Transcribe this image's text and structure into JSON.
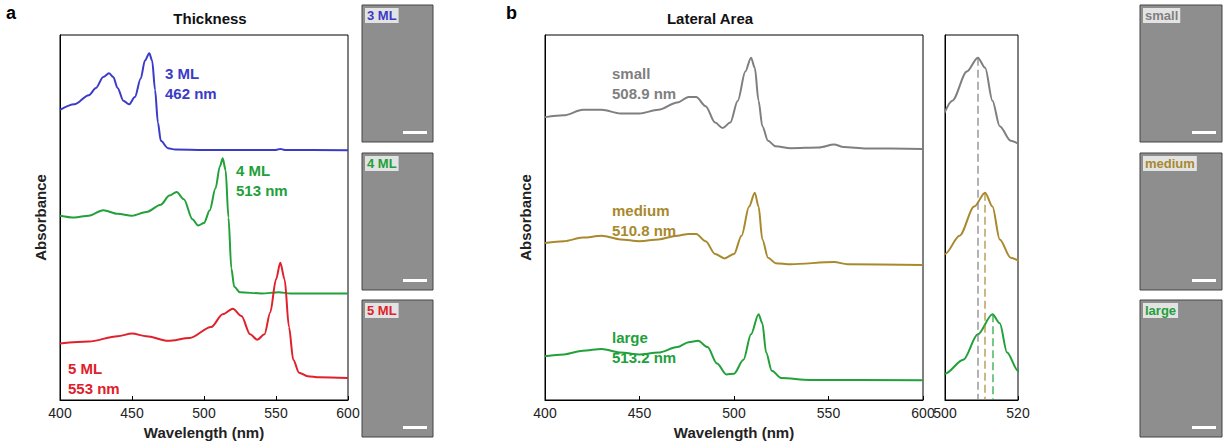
{
  "chart_data": [
    {
      "type": "line",
      "panel": "a",
      "title": "Thickness",
      "x_label": "Wavelength (nm)",
      "y_label": "Absorbance",
      "xlim": [
        400,
        600
      ],
      "xticks": [
        400,
        450,
        500,
        550,
        600
      ],
      "ylim": [
        0,
        10
      ],
      "yticks": [],
      "tick_labels": "x",
      "grid": false,
      "series": [
        {
          "name": "3 ML",
          "annotation": "462 nm",
          "color": "#3b3bc9",
          "x": [
            400,
            410,
            420,
            425,
            430,
            434,
            437,
            440,
            444,
            448,
            452,
            456,
            459,
            462,
            464,
            466,
            468,
            470,
            475,
            480,
            500,
            550,
            553,
            556,
            600
          ],
          "values": [
            7.95,
            8.1,
            8.35,
            8.55,
            8.85,
            8.95,
            8.85,
            8.55,
            8.2,
            8.1,
            8.3,
            8.8,
            9.3,
            9.5,
            9.3,
            8.5,
            7.6,
            7.1,
            6.9,
            6.86,
            6.85,
            6.85,
            6.88,
            6.85,
            6.84
          ]
        },
        {
          "name": "4 ML",
          "annotation": "513 nm",
          "color": "#22a03a",
          "x": [
            400,
            410,
            420,
            430,
            440,
            450,
            460,
            470,
            476,
            481,
            486,
            492,
            496,
            500,
            504,
            508,
            511,
            513,
            515,
            517,
            519,
            521,
            525,
            540,
            552,
            560,
            600
          ],
          "values": [
            5.05,
            5.0,
            5.05,
            5.2,
            5.1,
            5.05,
            5.15,
            5.35,
            5.6,
            5.7,
            5.5,
            4.95,
            4.78,
            4.85,
            5.2,
            5.8,
            6.4,
            6.62,
            6.3,
            5.0,
            3.6,
            3.1,
            2.95,
            2.92,
            2.95,
            2.92,
            2.92
          ]
        },
        {
          "name": "5 ML",
          "annotation": "553 nm",
          "color": "#e0202a",
          "x": [
            400,
            420,
            440,
            450,
            460,
            475,
            490,
            505,
            513,
            520,
            526,
            532,
            537,
            542,
            546,
            550,
            553,
            556,
            559,
            562,
            566,
            572,
            580,
            600
          ],
          "values": [
            1.55,
            1.6,
            1.75,
            1.82,
            1.75,
            1.62,
            1.7,
            2.0,
            2.35,
            2.5,
            2.3,
            1.8,
            1.65,
            1.8,
            2.4,
            3.3,
            3.76,
            3.3,
            2.0,
            1.1,
            0.75,
            0.65,
            0.62,
            0.6
          ]
        }
      ]
    },
    {
      "type": "line",
      "panel": "b",
      "title": "Lateral Area",
      "x_label": "Wavelength (nm)",
      "y_label": "Absorbance",
      "xlim": [
        400,
        600
      ],
      "xticks": [
        400,
        450,
        500,
        550,
        600
      ],
      "ylim": [
        0,
        10
      ],
      "yticks": [],
      "tick_labels": "x",
      "grid": false,
      "series": [
        {
          "name": "small",
          "annotation": "508.9 nm",
          "peak": 508.9,
          "color": "#7f7f7f",
          "x": [
            400,
            410,
            420,
            430,
            440,
            450,
            460,
            470,
            476,
            480,
            485,
            490,
            494,
            498,
            502,
            506,
            509,
            511,
            513,
            515,
            518,
            522,
            530,
            545,
            553,
            558,
            570,
            600
          ],
          "values": [
            7.75,
            7.8,
            7.95,
            7.95,
            7.85,
            7.85,
            7.95,
            8.15,
            8.3,
            8.3,
            8.05,
            7.6,
            7.45,
            7.6,
            8.2,
            9.0,
            9.38,
            9.1,
            8.2,
            7.5,
            7.1,
            6.95,
            6.9,
            6.92,
            7.0,
            6.93,
            6.89,
            6.88
          ]
        },
        {
          "name": "medium",
          "annotation": "510.8 nm",
          "peak": 510.8,
          "color": "#a8892e",
          "x": [
            400,
            410,
            420,
            430,
            440,
            450,
            460,
            470,
            476,
            480,
            485,
            490,
            495,
            500,
            504,
            508,
            511,
            513,
            515,
            518,
            522,
            530,
            553,
            560,
            600
          ],
          "values": [
            4.3,
            4.35,
            4.45,
            4.5,
            4.4,
            4.35,
            4.4,
            4.5,
            4.55,
            4.55,
            4.35,
            4.0,
            3.88,
            4.0,
            4.5,
            5.3,
            5.68,
            5.3,
            4.4,
            3.9,
            3.75,
            3.72,
            3.78,
            3.72,
            3.7
          ]
        },
        {
          "name": "large",
          "annotation": "513.2 nm",
          "peak": 513.2,
          "color": "#22a03a",
          "x": [
            400,
            410,
            420,
            430,
            440,
            450,
            460,
            470,
            476,
            481,
            486,
            491,
            496,
            500,
            505,
            509,
            513,
            515,
            517,
            520,
            525,
            540,
            600
          ],
          "values": [
            1.2,
            1.25,
            1.35,
            1.4,
            1.3,
            1.25,
            1.3,
            1.45,
            1.58,
            1.62,
            1.45,
            1.0,
            0.7,
            0.72,
            1.1,
            1.8,
            2.35,
            2.1,
            1.3,
            0.8,
            0.6,
            0.55,
            0.54
          ]
        }
      ]
    },
    {
      "type": "line",
      "inset_of": "b",
      "xlim": [
        500,
        520
      ],
      "xticks": [
        500,
        520
      ],
      "ylim": [
        0,
        10
      ],
      "yticks": [],
      "tick_labels": "x",
      "grid": false,
      "line_style": "dashed"
    }
  ]
}
